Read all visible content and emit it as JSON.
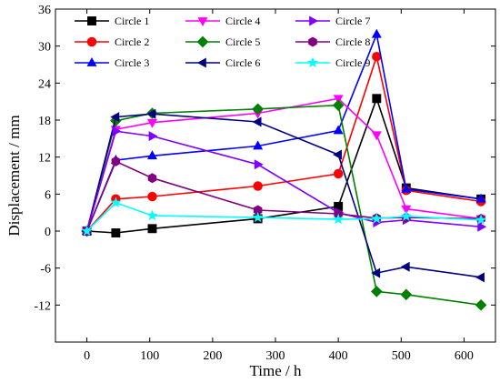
{
  "chart_data": {
    "type": "line",
    "xlabel": "Time / h",
    "ylabel": "Displacement / mm",
    "xlim": [
      -50,
      650
    ],
    "ylim": [
      -18,
      36
    ],
    "xticks": [
      0,
      100,
      200,
      300,
      400,
      500,
      600
    ],
    "yticks": [
      -12,
      -6,
      0,
      6,
      12,
      18,
      24,
      30,
      36
    ],
    "xtick_labels": [
      "0",
      "100",
      "200",
      "300",
      "400",
      "500",
      "600"
    ],
    "ytick_labels": [
      "-12",
      "-6",
      "0",
      "6",
      "12",
      "18",
      "24",
      "30",
      "36"
    ],
    "grid": false,
    "legend_position": "top-right",
    "series": [
      {
        "name": "Circle 1",
        "color": "#000000",
        "marker": "square",
        "x": [
          0,
          46,
          104,
          272,
          400,
          461,
          508,
          627
        ],
        "y": [
          0,
          -0.3,
          0.4,
          2.0,
          4.0,
          21.5,
          7.0,
          5.2
        ]
      },
      {
        "name": "Circle 2",
        "color": "#ff0000",
        "marker": "circle",
        "x": [
          0,
          46,
          104,
          272,
          400,
          461,
          508,
          627
        ],
        "y": [
          0,
          5.2,
          5.6,
          7.3,
          9.3,
          28.3,
          6.6,
          4.8
        ]
      },
      {
        "name": "Circle 3",
        "color": "#0000ff",
        "marker": "triangle-up",
        "x": [
          0,
          46,
          104,
          272,
          400,
          461,
          508,
          627
        ],
        "y": [
          0,
          11.5,
          12.2,
          13.8,
          16.3,
          31.9,
          6.8,
          5.2
        ]
      },
      {
        "name": "Circle 4",
        "color": "#ff00ff",
        "marker": "triangle-down",
        "x": [
          0,
          46,
          104,
          272,
          400,
          461,
          508,
          627
        ],
        "y": [
          0,
          16.5,
          17.6,
          19.1,
          21.5,
          15.6,
          3.6,
          2.0
        ]
      },
      {
        "name": "Circle 5",
        "color": "#008000",
        "marker": "diamond",
        "x": [
          0,
          46,
          104,
          272,
          400,
          461,
          508,
          627
        ],
        "y": [
          0,
          17.9,
          19.1,
          19.8,
          20.4,
          -9.8,
          -10.3,
          -12.0
        ]
      },
      {
        "name": "Circle 6",
        "color": "#000080",
        "marker": "triangle-left",
        "x": [
          0,
          46,
          104,
          272,
          400,
          461,
          508,
          627
        ],
        "y": [
          0,
          18.5,
          19.0,
          17.7,
          12.4,
          -6.8,
          -5.8,
          -7.5
        ]
      },
      {
        "name": "Circle 7",
        "color": "#8000ff",
        "marker": "triangle-right",
        "x": [
          0,
          46,
          104,
          272,
          400,
          461,
          508,
          627
        ],
        "y": [
          0,
          16.2,
          15.4,
          10.8,
          3.0,
          1.4,
          1.8,
          0.7
        ]
      },
      {
        "name": "Circle 8",
        "color": "#800080",
        "marker": "hexagon",
        "x": [
          0,
          46,
          104,
          272,
          400,
          461,
          508,
          627
        ],
        "y": [
          0,
          11.3,
          8.6,
          3.4,
          2.8,
          2.1,
          2.2,
          2.0
        ]
      },
      {
        "name": "Circle 9",
        "color": "#00ffff",
        "marker": "star",
        "x": [
          0,
          46,
          104,
          272,
          400,
          461,
          508,
          627
        ],
        "y": [
          0,
          4.6,
          2.5,
          2.2,
          1.9,
          2.0,
          2.4,
          1.8
        ]
      }
    ]
  }
}
